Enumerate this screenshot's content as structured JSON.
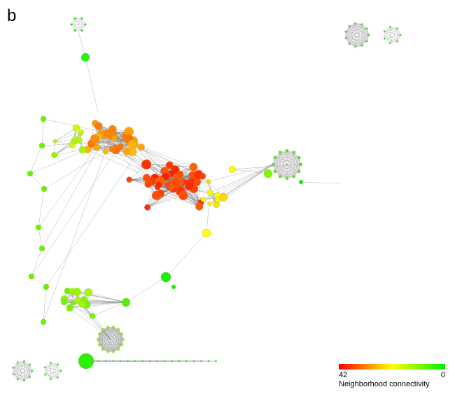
{
  "panel_label": "b",
  "legend": {
    "title": "Neighborhood connectivity",
    "max_label": 42,
    "min_label": 0,
    "colors": [
      "#ff0000",
      "#ffff00",
      "#00ee00"
    ]
  }
}
